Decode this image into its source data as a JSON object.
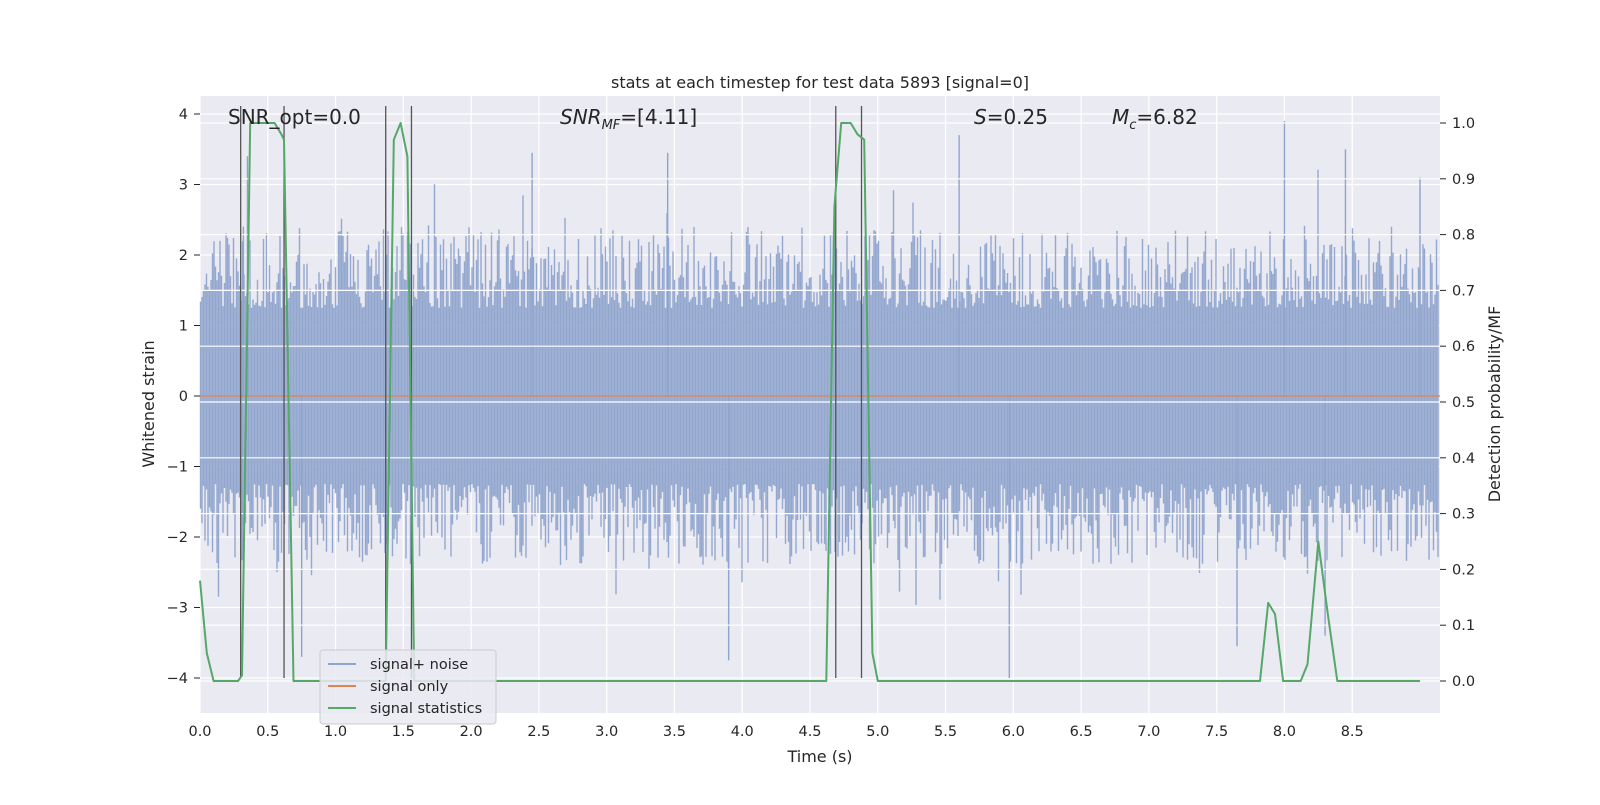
{
  "chart_data": {
    "type": "line",
    "title": "stats at each timestep for test data 5893 [signal=0]",
    "xlabel": "Time (s)",
    "ylabel_left": "Whitened strain",
    "ylabel_right": "Detection probability/MF",
    "xlim": [
      0.0,
      9.0
    ],
    "ylim_left": [
      -4.4,
      4.3
    ],
    "ylim_right": [
      -0.05,
      1.03
    ],
    "x_ticks": [
      "0.0",
      "0.5",
      "1.0",
      "1.5",
      "2.0",
      "2.5",
      "3.0",
      "3.5",
      "4.0",
      "4.5",
      "5.0",
      "5.5",
      "6.0",
      "6.5",
      "7.0",
      "7.5",
      "8.0",
      "8.5"
    ],
    "y_ticks_left": [
      "4",
      "3",
      "2",
      "1",
      "0",
      "−1",
      "−2",
      "−3",
      "−4"
    ],
    "y_ticks_right": [
      "1.0",
      "0.9",
      "0.8",
      "0.7",
      "0.6",
      "0.5",
      "0.4",
      "0.3",
      "0.2",
      "0.1",
      "0.0"
    ],
    "grid": true,
    "legend": {
      "placement": "lower-left",
      "entries": [
        {
          "label": "signal+ noise",
          "color": "#8fa4cc"
        },
        {
          "label": "signal only",
          "color": "#dd8452"
        },
        {
          "label": "signal statistics",
          "color": "#55a868"
        }
      ]
    },
    "annotations": {
      "snr_opt": "SNR_opt=0.0",
      "snr_mf_main": "SNR",
      "snr_mf_sub": "MF",
      "snr_mf_value": "=[4.11]",
      "s_main": "S",
      "s_value": "=0.25",
      "mc_main": "M",
      "mc_sub": "c",
      "mc_value": "=6.82"
    },
    "noise_series": {
      "name": "signal+ noise",
      "x_range": [
        0.0,
        9.0
      ],
      "typical_envelope": [
        -2.4,
        2.4
      ],
      "peaks": [
        {
          "x": 0.32,
          "y": 2.4
        },
        {
          "x": 0.35,
          "y": 3.4
        },
        {
          "x": 1.37,
          "y": 3.25
        },
        {
          "x": 2.45,
          "y": 3.45
        },
        {
          "x": 3.45,
          "y": 3.45
        },
        {
          "x": 5.6,
          "y": 3.7
        },
        {
          "x": 8.0,
          "y": 3.9
        },
        {
          "x": 8.45,
          "y": 3.5
        },
        {
          "x": 9.0,
          "y": 3.1
        }
      ],
      "troughs": [
        {
          "x": 0.75,
          "y": -3.7
        },
        {
          "x": 3.9,
          "y": -3.75
        },
        {
          "x": 5.97,
          "y": -4.0
        },
        {
          "x": 7.65,
          "y": -3.55
        },
        {
          "x": 8.3,
          "y": -3.4
        }
      ]
    },
    "signal_only": {
      "name": "signal only",
      "values_constant": 0.0
    },
    "statistics_series": {
      "name": "signal statistics",
      "x": [
        0.0,
        0.05,
        0.1,
        0.2,
        0.28,
        0.31,
        0.37,
        0.55,
        0.6,
        0.62,
        0.69,
        0.75,
        0.8,
        1.37,
        1.43,
        1.48,
        1.53,
        1.58,
        1.63,
        1.7,
        4.62,
        4.68,
        4.73,
        4.8,
        4.85,
        4.9,
        4.96,
        5.0,
        7.82,
        7.88,
        7.93,
        7.99,
        8.05,
        8.12,
        8.17,
        8.25,
        8.32,
        8.39,
        8.45,
        9.0
      ],
      "y": [
        0.18,
        0.05,
        0.0,
        0.0,
        0.0,
        0.01,
        1.0,
        1.0,
        0.98,
        0.97,
        0.0,
        0.0,
        0.0,
        0.0,
        0.97,
        1.0,
        0.94,
        0.0,
        0.0,
        0.0,
        0.0,
        0.85,
        1.0,
        1.0,
        0.98,
        0.97,
        0.05,
        0.0,
        0.0,
        0.14,
        0.12,
        0.0,
        0.0,
        0.0,
        0.03,
        0.25,
        0.12,
        0.0,
        0.0,
        0.0
      ]
    },
    "vertical_markers_x": [
      0.3,
      0.62,
      1.37,
      1.56,
      4.69,
      4.88
    ]
  }
}
